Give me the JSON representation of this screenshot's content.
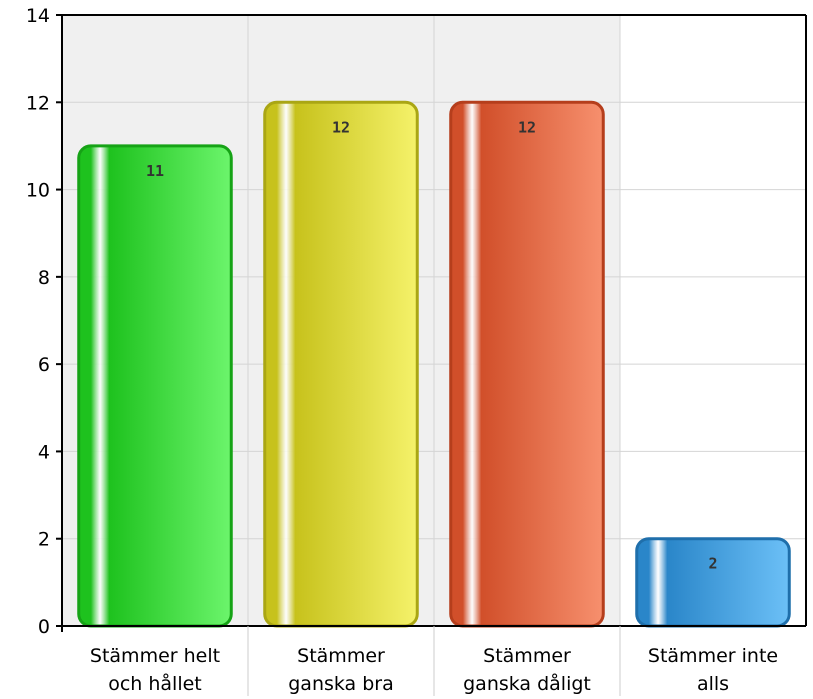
{
  "chart_data": {
    "type": "bar",
    "categories": [
      [
        "Stämmer helt",
        "och hållet"
      ],
      [
        "Stämmer",
        "ganska bra"
      ],
      [
        "Stämmer",
        "ganska dåligt"
      ],
      [
        "Stämmer inte",
        "alls"
      ]
    ],
    "values": [
      11,
      12,
      12,
      2
    ],
    "data_labels": [
      "11",
      "12",
      "12",
      "2"
    ],
    "ylim": [
      0,
      14
    ],
    "yticks": [
      "0",
      "2",
      "4",
      "6",
      "8",
      "10",
      "12",
      "14"
    ],
    "grid": true,
    "colors": [
      {
        "dark": "#1ec21e",
        "light": "#6cf56c",
        "border": "#16a316"
      },
      {
        "dark": "#c7c21c",
        "light": "#f5f26a",
        "border": "#aaa614"
      },
      {
        "dark": "#d14f2a",
        "light": "#f7906e",
        "border": "#b53e1c"
      },
      {
        "dark": "#2a86c9",
        "light": "#6cc0f7",
        "border": "#1f6fab"
      }
    ]
  }
}
